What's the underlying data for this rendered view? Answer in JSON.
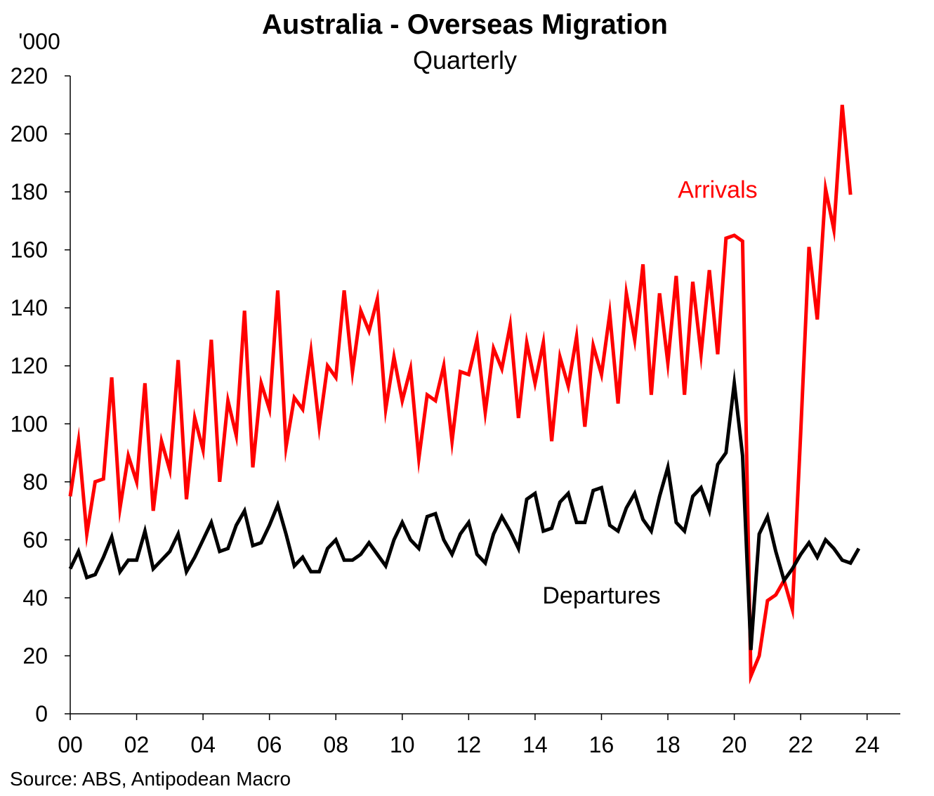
{
  "chart_data": {
    "type": "line",
    "title": "Australia  - Overseas Migration",
    "subtitle": "Quarterly",
    "ylabel": "'000",
    "source": "Source: ABS, Antipodean  Macro",
    "ylim": [
      0,
      220
    ],
    "xlim": [
      2000,
      2025
    ],
    "y_ticks": [
      "0",
      "20",
      "40",
      "60",
      "80",
      "100",
      "120",
      "140",
      "160",
      "180",
      "200",
      "220"
    ],
    "x_ticks": [
      "00",
      "02",
      "04",
      "06",
      "08",
      "10",
      "12",
      "14",
      "16",
      "18",
      "20",
      "22",
      "24"
    ],
    "x_start": "2000-Q1",
    "frequency": "quarterly",
    "grid": false,
    "series": [
      {
        "name": "Arrivals",
        "color": "#ff0000",
        "values": [
          75,
          94,
          62,
          80,
          81,
          116,
          71,
          89,
          80,
          114,
          70,
          94,
          84,
          122,
          74,
          102,
          91,
          129,
          80,
          108,
          96,
          139,
          85,
          114,
          105,
          146,
          92,
          109,
          105,
          125,
          99,
          120,
          116,
          146,
          118,
          139,
          132,
          143,
          105,
          123,
          108,
          119,
          88,
          110,
          108,
          120,
          94,
          118,
          117,
          129,
          104,
          126,
          119,
          134,
          102,
          128,
          114,
          128,
          94,
          123,
          113,
          130,
          99,
          127,
          117,
          138,
          107,
          145,
          129,
          155,
          110,
          145,
          121,
          151,
          110,
          149,
          124,
          153,
          124,
          164,
          165,
          163,
          13,
          20,
          39,
          41,
          46,
          36,
          97,
          161,
          136,
          181,
          167,
          210,
          179
        ]
      },
      {
        "name": "Departures",
        "color": "#000000",
        "values": [
          50,
          56,
          47,
          48,
          54,
          61,
          49,
          53,
          53,
          63,
          50,
          53,
          56,
          62,
          49,
          54,
          60,
          66,
          56,
          57,
          65,
          70,
          58,
          59,
          65,
          72,
          62,
          51,
          54,
          49,
          49,
          57,
          60,
          53,
          53,
          55,
          59,
          55,
          51,
          60,
          66,
          60,
          57,
          68,
          69,
          60,
          55,
          62,
          66,
          55,
          52,
          62,
          68,
          63,
          57,
          74,
          76,
          63,
          64,
          73,
          76,
          66,
          66,
          77,
          78,
          65,
          63,
          71,
          76,
          67,
          63,
          75,
          85,
          66,
          63,
          75,
          78,
          70,
          86,
          90,
          114,
          89,
          22,
          62,
          68,
          56,
          46,
          50,
          55,
          59,
          54,
          60,
          57,
          53,
          52,
          57
        ]
      }
    ],
    "annotations": [
      {
        "text": "Arrivals",
        "color": "#ff0000",
        "x": 2019.5,
        "y": 178
      },
      {
        "text": "Departures",
        "color": "#000000",
        "x": 2016.0,
        "y": 38
      }
    ]
  }
}
